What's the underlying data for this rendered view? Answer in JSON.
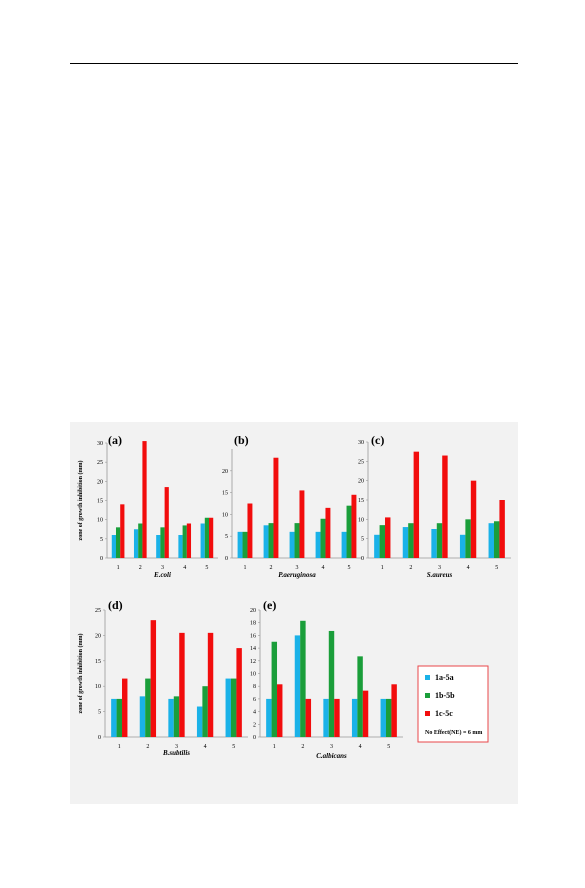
{
  "colors": {
    "s1": "#1ab2e8",
    "s2": "#1a9e3a",
    "s3": "#f20d0d",
    "legend_border": "#e8474a",
    "axis": "#999999"
  },
  "legend": {
    "items": [
      "1a-5a",
      "1b-5b",
      "1c-5c"
    ],
    "note": "No Effect(NE) = 6 mm"
  },
  "chart_data": [
    {
      "type": "bar",
      "panel_label": "(a)",
      "xlabel": "E.coli",
      "ylabel": "zone of growth inhibition (mm)",
      "categories": [
        "1",
        "2",
        "3",
        "4",
        "5"
      ],
      "ylim": [
        0,
        30
      ],
      "yticks": [
        0,
        5,
        10,
        15,
        20,
        25,
        30
      ],
      "series": [
        {
          "name": "1a-5a",
          "values": [
            6,
            7.5,
            6,
            6,
            9
          ]
        },
        {
          "name": "1b-5b",
          "values": [
            8,
            9,
            8,
            8.5,
            10.5
          ]
        },
        {
          "name": "1c-5c",
          "values": [
            14,
            30.5,
            18.5,
            9,
            10.5
          ]
        }
      ]
    },
    {
      "type": "bar",
      "panel_label": "(b)",
      "xlabel": "P.aeruginosa",
      "ylabel": "",
      "categories": [
        "1",
        "2",
        "3",
        "4",
        "5"
      ],
      "ylim": [
        0,
        25
      ],
      "yticks": [
        0,
        5,
        10,
        15,
        20
      ],
      "series": [
        {
          "name": "1a-5a",
          "values": [
            6,
            7.5,
            6,
            6,
            6
          ]
        },
        {
          "name": "1b-5b",
          "values": [
            6,
            8,
            8,
            9,
            12
          ]
        },
        {
          "name": "1c-5c",
          "values": [
            12.5,
            23,
            15.5,
            11.5,
            14.5
          ]
        }
      ]
    },
    {
      "type": "bar",
      "panel_label": "(c)",
      "xlabel": "S.aureus",
      "ylabel": "",
      "categories": [
        "1",
        "2",
        "3",
        "4",
        "5"
      ],
      "ylim": [
        0,
        30
      ],
      "yticks": [
        0,
        5,
        10,
        15,
        20,
        25,
        30
      ],
      "series": [
        {
          "name": "1a-5a",
          "values": [
            6,
            8,
            7.5,
            6,
            9
          ]
        },
        {
          "name": "1b-5b",
          "values": [
            8.5,
            9,
            9,
            10,
            9.5
          ]
        },
        {
          "name": "1c-5c",
          "values": [
            10.5,
            27.5,
            26.5,
            20,
            15
          ]
        }
      ]
    },
    {
      "type": "bar",
      "panel_label": "(d)",
      "xlabel": "B.subtilis",
      "ylabel": "zone of growth inhibition (mm)",
      "categories": [
        "1",
        "2",
        "3",
        "4",
        "5"
      ],
      "ylim": [
        0,
        25
      ],
      "yticks": [
        0,
        5,
        10,
        15,
        20,
        25
      ],
      "series": [
        {
          "name": "1a-5a",
          "values": [
            7.5,
            8,
            7.5,
            6,
            11.5
          ]
        },
        {
          "name": "1b-5b",
          "values": [
            7.5,
            11.5,
            8,
            10,
            11.5
          ]
        },
        {
          "name": "1c-5c",
          "values": [
            11.5,
            23,
            20.5,
            20.5,
            17.5
          ]
        }
      ]
    },
    {
      "type": "bar",
      "panel_label": "(e)",
      "xlabel": "C.albicans",
      "ylabel": "",
      "categories": [
        "1",
        "2",
        "3",
        "4",
        "5"
      ],
      "ylim": [
        0,
        20
      ],
      "yticks": [
        0,
        2,
        4,
        6,
        8,
        10,
        12,
        14,
        16,
        18,
        20
      ],
      "series": [
        {
          "name": "1a-5a",
          "values": [
            6,
            16,
            6,
            6,
            6
          ]
        },
        {
          "name": "1b-5b",
          "values": [
            15,
            18.3,
            16.7,
            12.7,
            6
          ]
        },
        {
          "name": "1c-5c",
          "values": [
            8.3,
            6,
            6,
            7.3,
            8.3
          ]
        }
      ]
    }
  ]
}
